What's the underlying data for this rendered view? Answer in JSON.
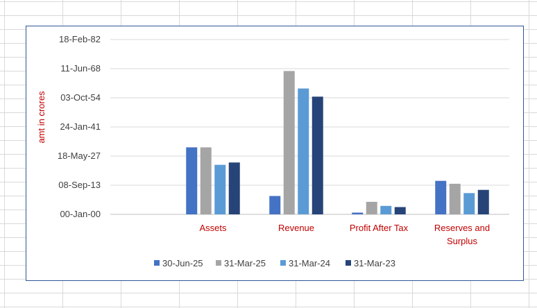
{
  "chart_data": {
    "type": "bar",
    "title": "",
    "xlabel": "",
    "ylabel": "amt in crores",
    "categories": [
      "Assets",
      "Revenue",
      "Profit After Tax",
      "Reserves and Surplus"
    ],
    "category_lines": [
      [
        "Assets"
      ],
      [
        "Revenue"
      ],
      [
        "Profit After Tax"
      ],
      [
        "Reserves and",
        "Surplus"
      ]
    ],
    "y_tick_labels": [
      "00-Jan-00",
      "08-Sep-13",
      "18-May-27",
      "24-Jan-41",
      "03-Oct-54",
      "11-Jun-68",
      "18-Feb-82"
    ],
    "y_tick_values": [
      0,
      5000,
      10000,
      15000,
      20000,
      25000,
      30000
    ],
    "ylim": [
      0,
      30000
    ],
    "grid": true,
    "legend_position": "bottom",
    "series": [
      {
        "name": "30-Jun-25",
        "color": "#4472c4",
        "values": [
          11500,
          3150,
          300,
          5750
        ]
      },
      {
        "name": "31-Mar-25",
        "color": "#a5a5a5",
        "values": [
          11500,
          24600,
          2150,
          5250
        ]
      },
      {
        "name": "31-Mar-24",
        "color": "#5b9bd5",
        "values": [
          8500,
          21600,
          1450,
          3650
        ]
      },
      {
        "name": "31-Mar-23",
        "color": "#264478",
        "values": [
          8900,
          20200,
          1250,
          4200
        ]
      }
    ]
  }
}
